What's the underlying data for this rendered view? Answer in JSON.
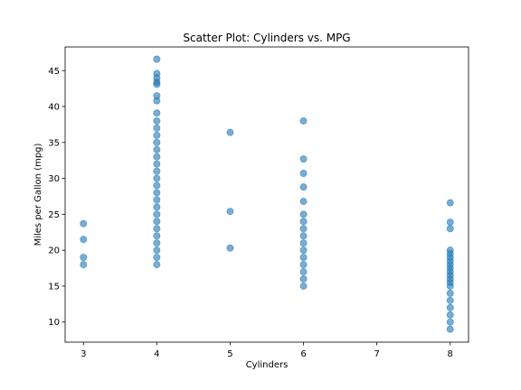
{
  "chart_data": {
    "type": "scatter",
    "title": "Scatter Plot: Cylinders vs. MPG",
    "xlabel": "Cylinders",
    "ylabel": "Miles per Gallon (mpg)",
    "xlim": [
      2.75,
      8.25
    ],
    "ylim": [
      7.2,
      48.3
    ],
    "xticks": [
      3,
      4,
      5,
      6,
      7,
      8
    ],
    "yticks": [
      10,
      15,
      20,
      25,
      30,
      35,
      40,
      45
    ],
    "grid": false,
    "point_color": "#1f77b4",
    "point_alpha": 0.6,
    "points": [
      {
        "x": 3,
        "y": 18.0
      },
      {
        "x": 3,
        "y": 19.0
      },
      {
        "x": 3,
        "y": 21.5
      },
      {
        "x": 3,
        "y": 23.7
      },
      {
        "x": 4,
        "y": 18.0
      },
      {
        "x": 4,
        "y": 19.0
      },
      {
        "x": 4,
        "y": 20.0
      },
      {
        "x": 4,
        "y": 21.0
      },
      {
        "x": 4,
        "y": 22.0
      },
      {
        "x": 4,
        "y": 23.0
      },
      {
        "x": 4,
        "y": 24.0
      },
      {
        "x": 4,
        "y": 25.0
      },
      {
        "x": 4,
        "y": 26.0
      },
      {
        "x": 4,
        "y": 27.0
      },
      {
        "x": 4,
        "y": 28.0
      },
      {
        "x": 4,
        "y": 29.0
      },
      {
        "x": 4,
        "y": 30.0
      },
      {
        "x": 4,
        "y": 31.0
      },
      {
        "x": 4,
        "y": 32.0
      },
      {
        "x": 4,
        "y": 33.0
      },
      {
        "x": 4,
        "y": 34.0
      },
      {
        "x": 4,
        "y": 35.0
      },
      {
        "x": 4,
        "y": 36.0
      },
      {
        "x": 4,
        "y": 37.0
      },
      {
        "x": 4,
        "y": 38.0
      },
      {
        "x": 4,
        "y": 39.1
      },
      {
        "x": 4,
        "y": 40.8
      },
      {
        "x": 4,
        "y": 41.5
      },
      {
        "x": 4,
        "y": 43.1
      },
      {
        "x": 4,
        "y": 43.4
      },
      {
        "x": 4,
        "y": 44.0
      },
      {
        "x": 4,
        "y": 44.6
      },
      {
        "x": 4,
        "y": 46.6
      },
      {
        "x": 5,
        "y": 20.3
      },
      {
        "x": 5,
        "y": 25.4
      },
      {
        "x": 5,
        "y": 36.4
      },
      {
        "x": 6,
        "y": 15.0
      },
      {
        "x": 6,
        "y": 16.0
      },
      {
        "x": 6,
        "y": 17.0
      },
      {
        "x": 6,
        "y": 18.0
      },
      {
        "x": 6,
        "y": 19.0
      },
      {
        "x": 6,
        "y": 20.0
      },
      {
        "x": 6,
        "y": 21.0
      },
      {
        "x": 6,
        "y": 22.0
      },
      {
        "x": 6,
        "y": 23.0
      },
      {
        "x": 6,
        "y": 24.0
      },
      {
        "x": 6,
        "y": 25.0
      },
      {
        "x": 6,
        "y": 26.8
      },
      {
        "x": 6,
        "y": 28.8
      },
      {
        "x": 6,
        "y": 30.7
      },
      {
        "x": 6,
        "y": 32.7
      },
      {
        "x": 6,
        "y": 38.0
      },
      {
        "x": 8,
        "y": 9.0
      },
      {
        "x": 8,
        "y": 10.0
      },
      {
        "x": 8,
        "y": 11.0
      },
      {
        "x": 8,
        "y": 12.0
      },
      {
        "x": 8,
        "y": 13.0
      },
      {
        "x": 8,
        "y": 14.0
      },
      {
        "x": 8,
        "y": 15.0
      },
      {
        "x": 8,
        "y": 15.5
      },
      {
        "x": 8,
        "y": 16.0
      },
      {
        "x": 8,
        "y": 16.5
      },
      {
        "x": 8,
        "y": 17.0
      },
      {
        "x": 8,
        "y": 17.5
      },
      {
        "x": 8,
        "y": 18.0
      },
      {
        "x": 8,
        "y": 18.5
      },
      {
        "x": 8,
        "y": 19.0
      },
      {
        "x": 8,
        "y": 19.5
      },
      {
        "x": 8,
        "y": 20.0
      },
      {
        "x": 8,
        "y": 23.0
      },
      {
        "x": 8,
        "y": 23.9
      },
      {
        "x": 8,
        "y": 26.6
      }
    ]
  }
}
